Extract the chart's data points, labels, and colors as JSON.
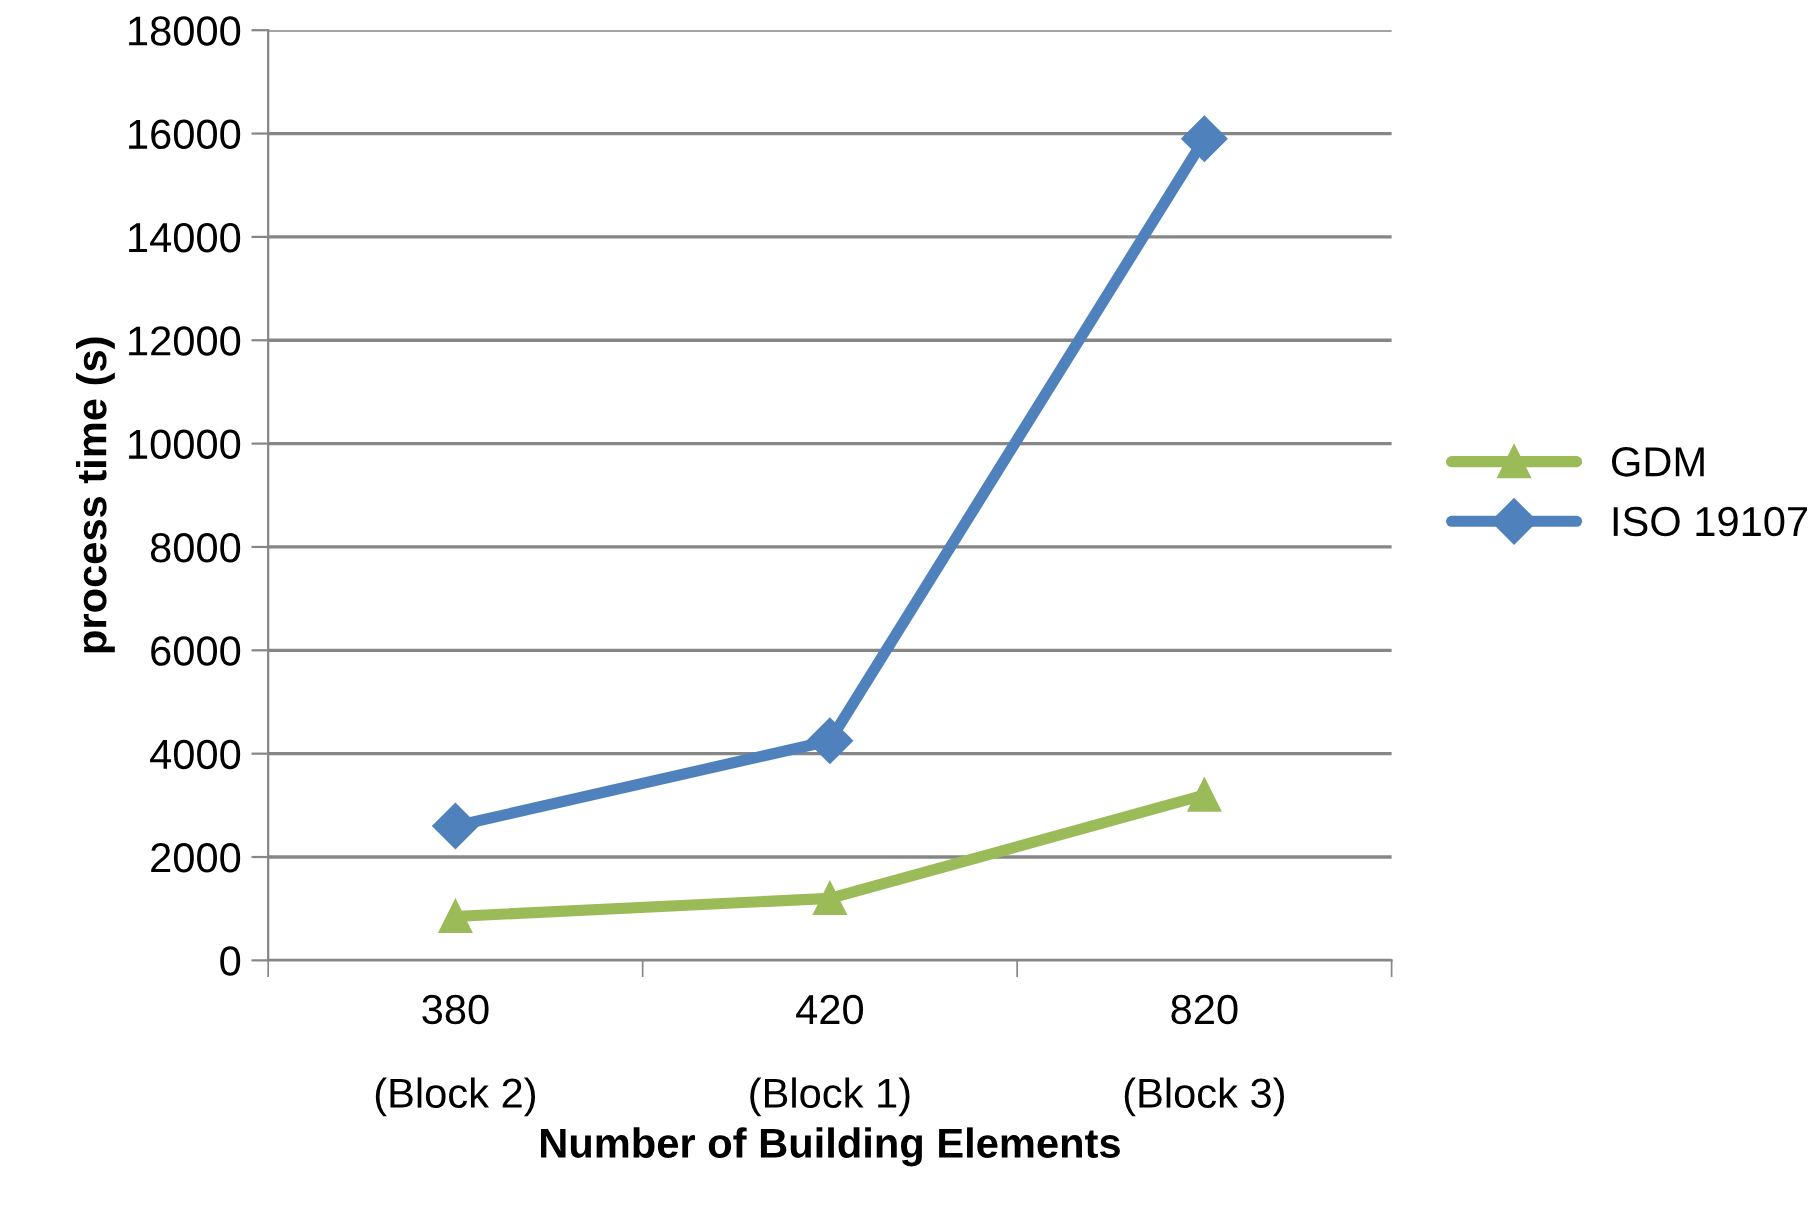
{
  "chart_data": {
    "type": "line",
    "xlabel": "Number of Building Elements",
    "ylabel": "process time (s)",
    "categories": [
      "380\n\n(Block 2)",
      "420\n\n(Block 1)",
      "820\n\n(Block 3)"
    ],
    "series": [
      {
        "name": "GDM",
        "color": "#9bbb59",
        "marker": "triangle",
        "values": [
          850,
          1200,
          3200
        ]
      },
      {
        "name": "ISO 19107",
        "color": "#4f81bd",
        "marker": "diamond",
        "values": [
          2600,
          4250,
          15900
        ]
      }
    ],
    "ylim": [
      0,
      18000
    ],
    "yticks": [
      0,
      2000,
      4000,
      6000,
      8000,
      10000,
      12000,
      14000,
      16000,
      18000
    ],
    "grid": "y",
    "legend": "right",
    "line_style": "solid"
  }
}
